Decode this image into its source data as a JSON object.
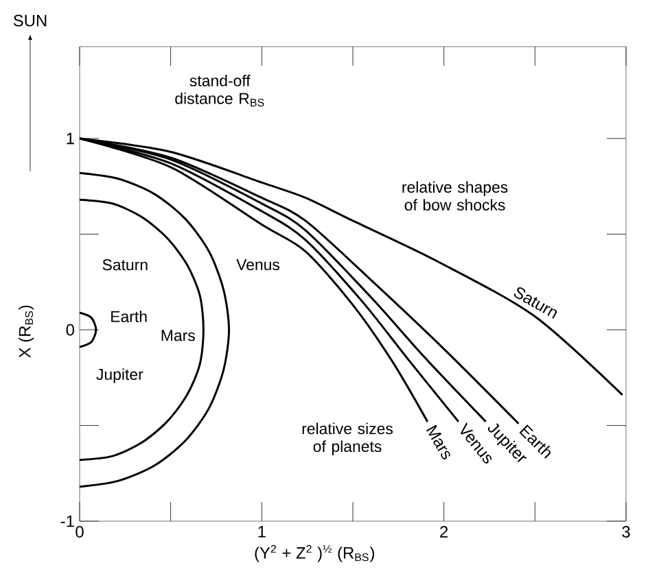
{
  "chart_data": {
    "type": "line",
    "xlabel": "(Y$^{2}$ + Z$^{2}$ )$^{½}$     (R$_{BS}$)",
    "ylabel": "X (R$_{BS}$)",
    "xlim": [
      0,
      3
    ],
    "ylim": [
      -1,
      1.48
    ],
    "xticks": [
      0,
      {
        "value": 0.5,
        "label": null
      },
      1,
      {
        "value": 1.5,
        "label": null
      },
      2,
      {
        "value": 2.5,
        "label": null
      },
      3
    ],
    "yticks": [
      -1,
      {
        "value": -0.5,
        "label": null
      },
      0,
      {
        "value": 0.5,
        "label": null
      },
      1
    ],
    "series": [
      {
        "name": "Saturn",
        "color": "#000000",
        "x": [
          0,
          0.5,
          1,
          1.24,
          1.5,
          1.96,
          2.5,
          2.98
        ],
        "values": [
          1,
          0.93,
          0.77,
          0.69,
          0.57,
          0.36,
          0.07,
          -0.34
        ]
      },
      {
        "name": "Earth",
        "color": "#000000",
        "x": [
          0,
          0.5,
          1,
          1.24,
          1.6,
          2.0,
          2.41
        ],
        "values": [
          1,
          0.9,
          0.69,
          0.57,
          0.26,
          -0.1,
          -0.49
        ]
      },
      {
        "name": "Jupiter",
        "color": "#000000",
        "x": [
          0,
          0.5,
          1,
          1.24,
          1.6,
          1.9,
          2.23
        ],
        "values": [
          1,
          0.89,
          0.66,
          0.52,
          0.17,
          -0.15,
          -0.48
        ]
      },
      {
        "name": "Venus",
        "color": "#000000",
        "x": [
          0,
          0.5,
          1,
          1.24,
          1.55,
          1.8,
          2.08
        ],
        "values": [
          1,
          0.87,
          0.62,
          0.47,
          0.15,
          -0.15,
          -0.48
        ]
      },
      {
        "name": "Mars",
        "color": "#000000",
        "x": [
          0,
          0.5,
          1,
          1.24,
          1.5,
          1.72,
          1.91
        ],
        "values": [
          1,
          0.85,
          0.55,
          0.41,
          0.13,
          -0.17,
          -0.48
        ]
      },
      {
        "color": "#000000",
        "x": [
          0,
          0.21,
          0.41,
          0.58,
          0.71,
          0.79,
          0.82,
          0.79,
          0.71,
          0.58,
          0.41,
          0.21,
          0
        ],
        "values": [
          0.82,
          0.79,
          0.71,
          0.58,
          0.41,
          0.21,
          0,
          -0.21,
          -0.41,
          -0.58,
          -0.71,
          -0.79,
          -0.82
        ]
      },
      {
        "color": "#000000",
        "x": [
          0,
          0.18,
          0.34,
          0.48,
          0.59,
          0.66,
          0.68,
          0.66,
          0.59,
          0.48,
          0.34,
          0.18,
          0
        ],
        "values": [
          0.68,
          0.66,
          0.59,
          0.48,
          0.34,
          0.18,
          0,
          -0.18,
          -0.34,
          -0.48,
          -0.59,
          -0.66,
          -0.68
        ]
      },
      {
        "color": "#000000",
        "x": [
          0,
          0.064,
          0.09,
          0.064,
          0
        ],
        "values": [
          0.09,
          0.064,
          0,
          -0.064,
          -0.09
        ]
      }
    ],
    "annotations": [
      "SUN",
      "stand-off distance R$_{BS}$",
      "relative shapes of bow shocks",
      "relative sizes of planets",
      "Saturn",
      "Earth",
      "Jupiter",
      "Mars",
      "Venus"
    ]
  }
}
